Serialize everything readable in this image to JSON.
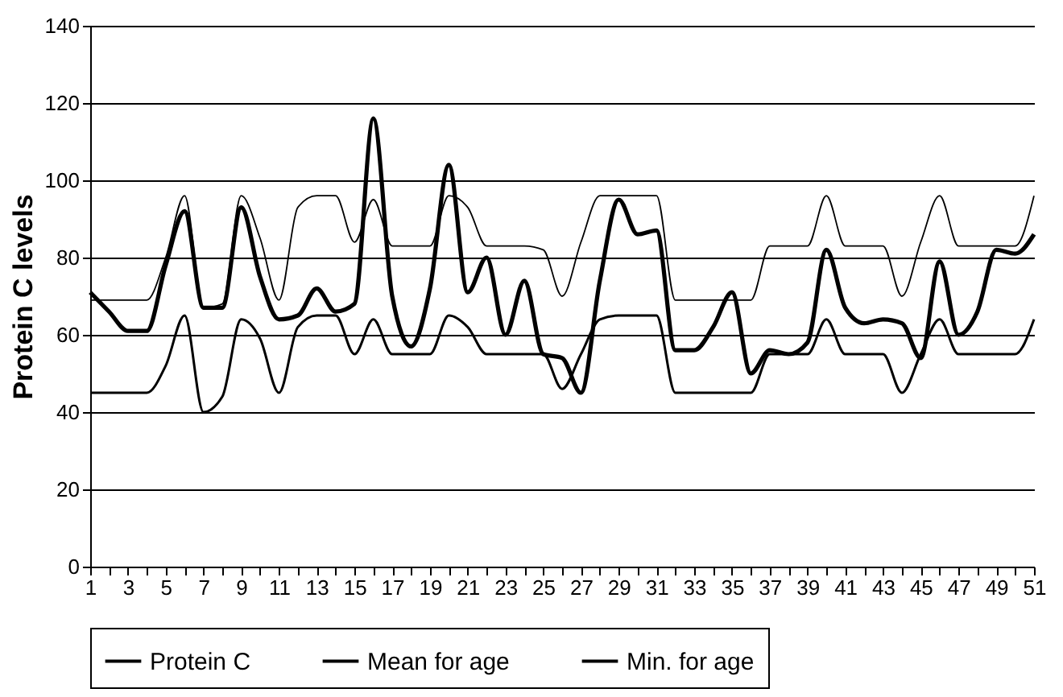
{
  "chart_data": {
    "type": "line",
    "ylabel": "Protein C levels",
    "x": [
      1,
      2,
      3,
      4,
      5,
      6,
      7,
      8,
      9,
      10,
      11,
      12,
      13,
      14,
      15,
      16,
      17,
      18,
      19,
      20,
      21,
      22,
      23,
      24,
      25,
      26,
      27,
      28,
      29,
      30,
      31,
      32,
      33,
      34,
      35,
      36,
      37,
      38,
      39,
      40,
      41,
      42,
      43,
      44,
      45,
      46,
      47,
      48,
      49,
      50,
      51
    ],
    "xlim": [
      1,
      51
    ],
    "xticks": [
      1,
      {
        "value": 2,
        "label": null
      },
      3,
      {
        "value": 4,
        "label": null
      },
      5,
      {
        "value": 6,
        "label": null
      },
      7,
      {
        "value": 8,
        "label": null
      },
      9,
      {
        "value": 10,
        "label": null
      },
      11,
      {
        "value": 12,
        "label": null
      },
      13,
      {
        "value": 14,
        "label": null
      },
      15,
      {
        "value": 16,
        "label": null
      },
      17,
      {
        "value": 18,
        "label": null
      },
      19,
      {
        "value": 20,
        "label": null
      },
      21,
      {
        "value": 22,
        "label": null
      },
      23,
      {
        "value": 24,
        "label": null
      },
      25,
      {
        "value": 26,
        "label": null
      },
      27,
      {
        "value": 28,
        "label": null
      },
      29,
      {
        "value": 30,
        "label": null
      },
      31,
      {
        "value": 32,
        "label": null
      },
      33,
      {
        "value": 34,
        "label": null
      },
      35,
      {
        "value": 36,
        "label": null
      },
      37,
      {
        "value": 38,
        "label": null
      },
      39,
      {
        "value": 40,
        "label": null
      },
      41,
      {
        "value": 42,
        "label": null
      },
      43,
      {
        "value": 44,
        "label": null
      },
      45,
      {
        "value": 46,
        "label": null
      },
      47,
      {
        "value": 48,
        "label": null
      },
      49,
      {
        "value": 50,
        "label": null
      },
      51
    ],
    "ylim": [
      0,
      140
    ],
    "yticks": [
      0,
      20,
      40,
      60,
      80,
      100,
      120,
      140
    ],
    "grid": "y",
    "legend": "bottom",
    "line_style": "solid",
    "marker": "none",
    "series": [
      {
        "name": "Protein C",
        "color": "#000000",
        "values": [
          71,
          66,
          61,
          61,
          78,
          92,
          67,
          67,
          93,
          75,
          64,
          65,
          72,
          66,
          68,
          116,
          70,
          57,
          72,
          104,
          71,
          80,
          60,
          74,
          55,
          54,
          45,
          74,
          95,
          86,
          87,
          56,
          56,
          62,
          71,
          50,
          56,
          55,
          58,
          82,
          67,
          63,
          64,
          63,
          54,
          79,
          60,
          66,
          82,
          81,
          86
        ]
      },
      {
        "name": "Mean for age",
        "color": "#000000",
        "values": [
          69,
          69,
          69,
          69,
          80,
          96,
          67,
          68,
          96,
          85,
          69,
          93,
          96,
          96,
          84,
          95,
          83,
          83,
          83,
          96,
          93,
          83,
          83,
          83,
          82,
          70,
          84,
          96,
          96,
          96,
          96,
          69,
          69,
          69,
          69,
          69,
          83,
          83,
          83,
          96,
          83,
          83,
          83,
          70,
          84,
          96,
          83,
          83,
          83,
          83,
          96
        ]
      },
      {
        "name": "Min. for age",
        "color": "#000000",
        "values": [
          45,
          45,
          45,
          45,
          52,
          65,
          40,
          44,
          64,
          59,
          45,
          62,
          65,
          65,
          55,
          64,
          55,
          55,
          55,
          65,
          62,
          55,
          55,
          55,
          55,
          46,
          55,
          64,
          65,
          65,
          65,
          45,
          45,
          45,
          45,
          45,
          55,
          55,
          55,
          64,
          55,
          55,
          55,
          45,
          55,
          64,
          55,
          55,
          55,
          55,
          64
        ]
      }
    ]
  }
}
